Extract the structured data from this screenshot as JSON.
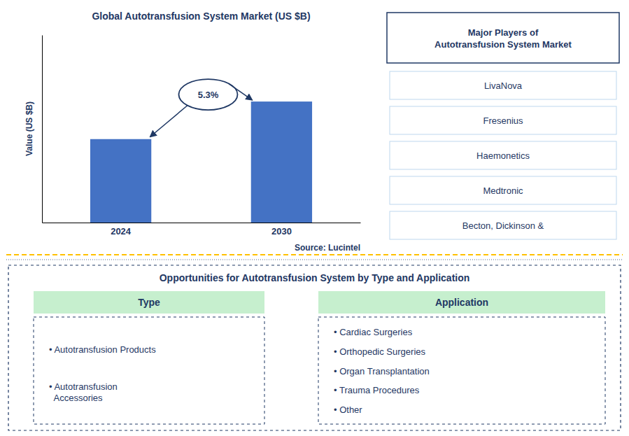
{
  "chart_data": {
    "type": "bar",
    "title": "Global Autotransfusion System Market (US $B)",
    "categories": [
      "2024",
      "2030"
    ],
    "values": [
      1.0,
      1.45
    ],
    "color": "#4472C4",
    "ylabel": "Value (US $B)",
    "ylim": [
      0,
      2.2475
    ],
    "yticks": [],
    "tick_labels": "x",
    "annotations": [
      "5.3%",
      "Source: Lucintel"
    ]
  },
  "major_players": {
    "title": "Major Players of\nAutotransfusion System Market",
    "items": [
      "LivaNova",
      "Fresenius",
      "Haemonetics",
      "Medtronic",
      "Becton, Dickinson &"
    ]
  },
  "opportunities": {
    "title": "Opportunities for Autotransfusion System by Type and Application",
    "columns": [
      {
        "header": "Type",
        "items": [
          "• Autotransfusion Products",
          "• Autotransfusion\n  Accessories"
        ]
      },
      {
        "header": "Application",
        "items": [
          "• Cardiac Surgeries",
          "• Orthopedic Surgeries",
          "• Organ Transplantation",
          "• Trauma Procedures",
          "• Other"
        ]
      }
    ]
  }
}
